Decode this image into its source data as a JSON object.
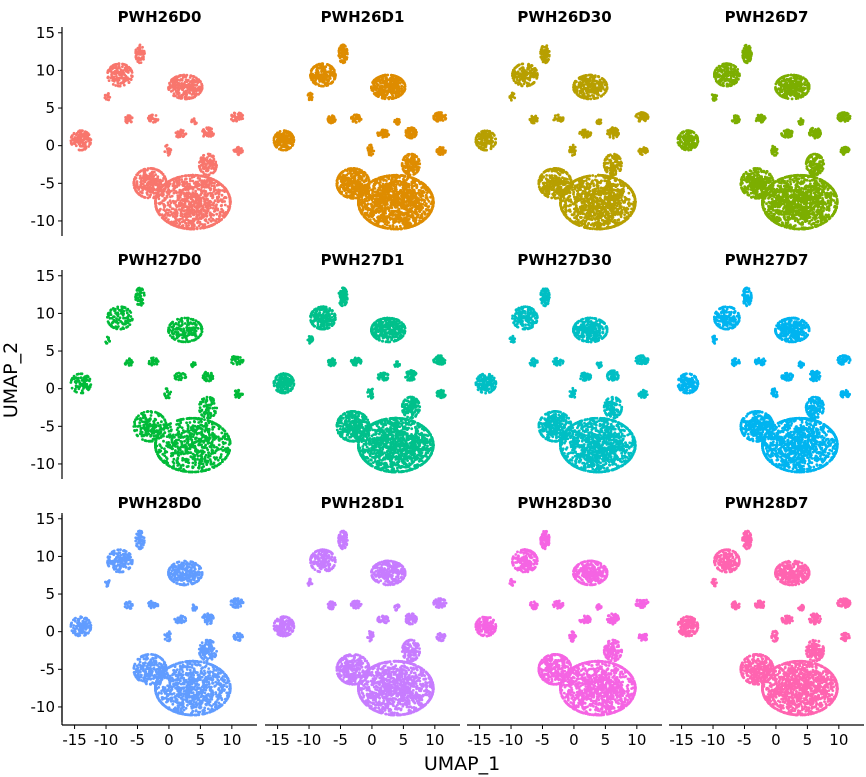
{
  "chart_data": {
    "type": "scatter",
    "layout": "facet-grid",
    "xlabel": "UMAP_1",
    "ylabel": "UMAP_2",
    "xlim": [
      -17,
      14
    ],
    "ylim": [
      -12,
      15.5
    ],
    "xticks": [
      -15,
      -10,
      -5,
      0,
      5,
      10
    ],
    "xtick_labels": [
      "-15",
      "-10",
      "-5",
      "0",
      "5",
      "10"
    ],
    "yticks": [
      -10,
      -5,
      0,
      5,
      10,
      15
    ],
    "ytick_labels": [
      "-10",
      "-5",
      "0",
      "5",
      "10",
      "15"
    ],
    "clusters": [
      {
        "cx": 3.8,
        "cy": -7.5,
        "rx": 6.0,
        "ry": 3.6,
        "w": 0.38
      },
      {
        "cx": -3.0,
        "cy": -5.0,
        "rx": 2.6,
        "ry": 2.0,
        "w": 0.1
      },
      {
        "cx": 6.2,
        "cy": -2.5,
        "rx": 1.4,
        "ry": 1.4,
        "w": 0.04
      },
      {
        "cx": 2.6,
        "cy": 7.8,
        "rx": 2.7,
        "ry": 1.6,
        "w": 0.1
      },
      {
        "cx": -7.8,
        "cy": 9.4,
        "rx": 2.0,
        "ry": 1.5,
        "w": 0.06
      },
      {
        "cx": -4.6,
        "cy": 12.2,
        "rx": 0.7,
        "ry": 1.2,
        "w": 0.025
      },
      {
        "cx": -14.0,
        "cy": 0.7,
        "rx": 1.6,
        "ry": 1.3,
        "w": 0.05
      },
      {
        "cx": 10.8,
        "cy": 3.8,
        "rx": 1.0,
        "ry": 0.6,
        "w": 0.018
      },
      {
        "cx": 11.0,
        "cy": -0.7,
        "rx": 0.7,
        "ry": 0.5,
        "w": 0.012
      },
      {
        "cx": 6.2,
        "cy": 1.7,
        "rx": 0.9,
        "ry": 0.7,
        "w": 0.018
      },
      {
        "cx": 1.8,
        "cy": 1.6,
        "rx": 0.9,
        "ry": 0.5,
        "w": 0.014
      },
      {
        "cx": -2.5,
        "cy": 3.6,
        "rx": 0.8,
        "ry": 0.5,
        "w": 0.012
      },
      {
        "cx": -6.4,
        "cy": 3.5,
        "rx": 0.6,
        "ry": 0.5,
        "w": 0.01
      },
      {
        "cx": 4.0,
        "cy": 3.2,
        "rx": 0.4,
        "ry": 0.4,
        "w": 0.006
      },
      {
        "cx": -9.8,
        "cy": 6.5,
        "rx": 0.4,
        "ry": 0.5,
        "w": 0.005
      },
      {
        "cx": -0.2,
        "cy": -0.6,
        "rx": 0.5,
        "ry": 0.7,
        "w": 0.008
      }
    ],
    "facets": [
      {
        "name": "PWH26D0",
        "color": "#F8766D",
        "n": 2200
      },
      {
        "name": "PWH26D1",
        "color": "#DE8C00",
        "n": 3000
      },
      {
        "name": "PWH26D30",
        "color": "#B79F00",
        "n": 2600
      },
      {
        "name": "PWH26D7",
        "color": "#7CAE00",
        "n": 3000
      },
      {
        "name": "PWH27D0",
        "color": "#00BA38",
        "n": 1600
      },
      {
        "name": "PWH27D1",
        "color": "#00C08B",
        "n": 3000
      },
      {
        "name": "PWH27D30",
        "color": "#00BFC4",
        "n": 2600
      },
      {
        "name": "PWH27D7",
        "color": "#00B4F0",
        "n": 2600
      },
      {
        "name": "PWH28D0",
        "color": "#619CFF",
        "n": 2200
      },
      {
        "name": "PWH28D1",
        "color": "#C77CFF",
        "n": 2600
      },
      {
        "name": "PWH28D30",
        "color": "#F564E3",
        "n": 2600
      },
      {
        "name": "PWH28D7",
        "color": "#FF64B0",
        "n": 2800
      }
    ]
  }
}
